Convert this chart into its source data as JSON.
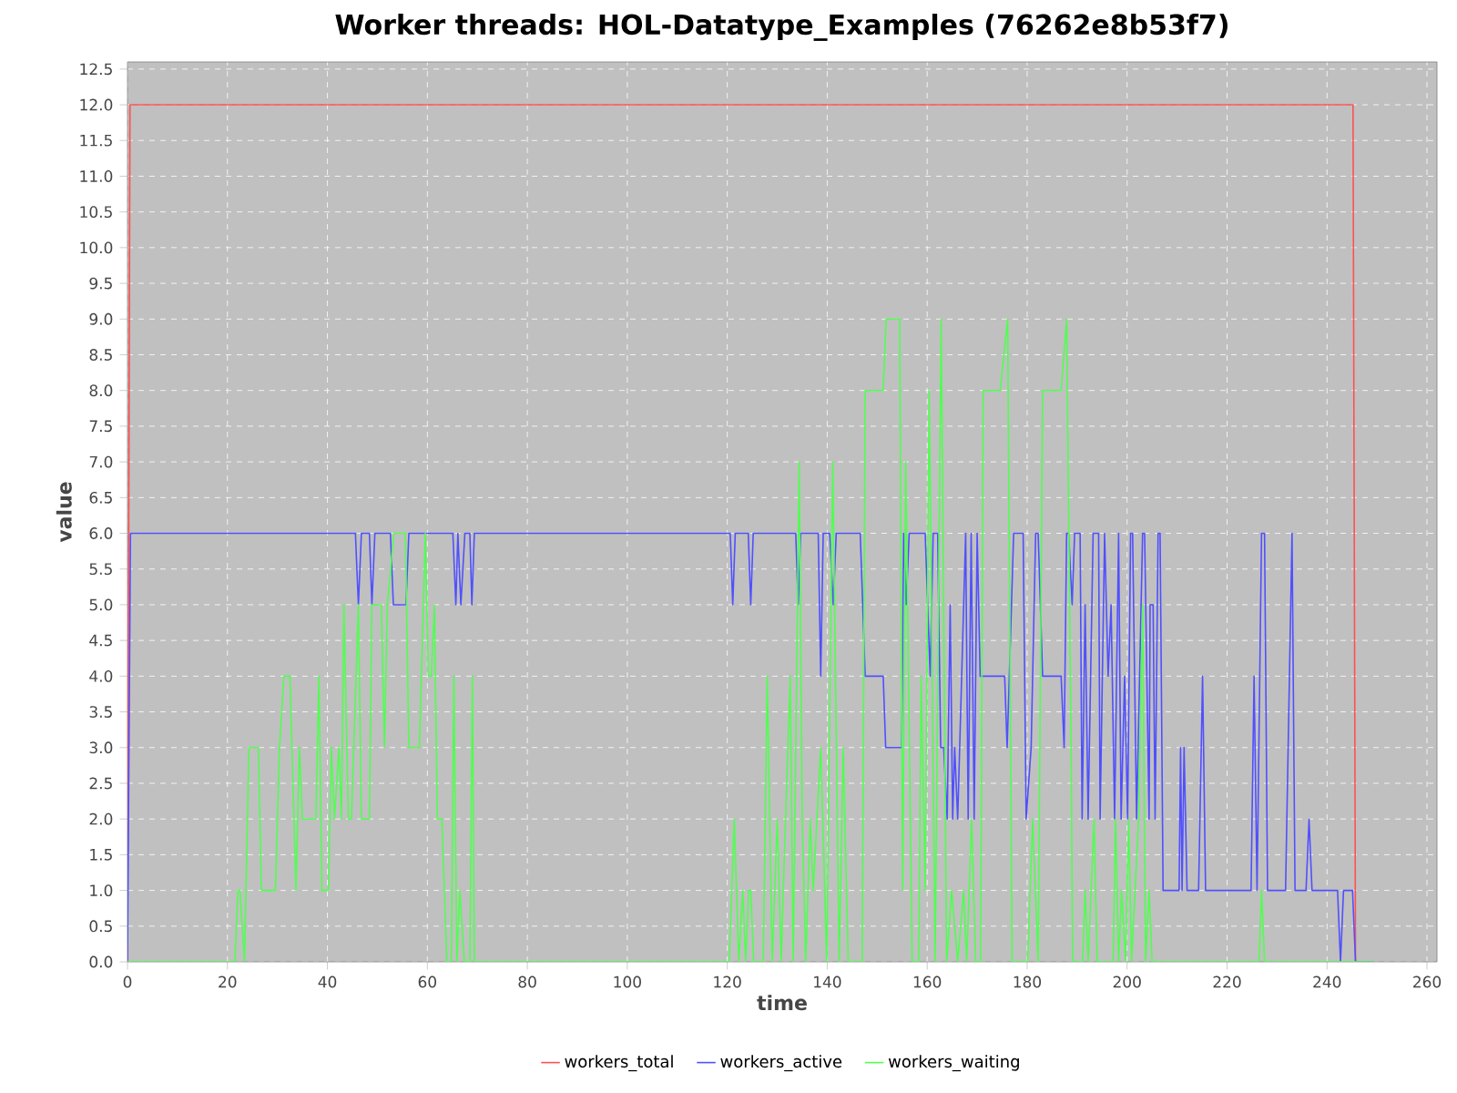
{
  "chart_data": {
    "type": "line",
    "title": "Worker threads: HOL-Datatype_Examples (76262e8b53f7)",
    "xlabel": "time",
    "ylabel": "value",
    "xlim": [
      0,
      262
    ],
    "xticks": [
      0,
      20,
      40,
      60,
      80,
      100,
      120,
      140,
      160,
      180,
      200,
      220,
      240,
      260
    ],
    "ylim": [
      0,
      12.6
    ],
    "yticks": [
      {
        "value": 0,
        "label": "0.0"
      },
      {
        "value": 0.5,
        "label": "0.5"
      },
      {
        "value": 1,
        "label": "1.0"
      },
      {
        "value": 1.5,
        "label": "1.5"
      },
      {
        "value": 2,
        "label": "2.0"
      },
      {
        "value": 2.5,
        "label": "2.5"
      },
      {
        "value": 3,
        "label": "3.0"
      },
      {
        "value": 3.5,
        "label": "3.5"
      },
      {
        "value": 4,
        "label": "4.0"
      },
      {
        "value": 4.5,
        "label": "4.5"
      },
      {
        "value": 5,
        "label": "5.0"
      },
      {
        "value": 5.5,
        "label": "5.5"
      },
      {
        "value": 6,
        "label": "6.0"
      },
      {
        "value": 6.5,
        "label": "6.5"
      },
      {
        "value": 7,
        "label": "7.0"
      },
      {
        "value": 7.5,
        "label": "7.5"
      },
      {
        "value": 8,
        "label": "8.0"
      },
      {
        "value": 8.5,
        "label": "8.5"
      },
      {
        "value": 9,
        "label": "9.0"
      },
      {
        "value": 9.5,
        "label": "9.5"
      },
      {
        "value": 10,
        "label": "10.0"
      },
      {
        "value": 10.5,
        "label": "10.5"
      },
      {
        "value": 11,
        "label": "11.0"
      },
      {
        "value": 11.5,
        "label": "11.5"
      },
      {
        "value": 12,
        "label": "12.0"
      },
      {
        "value": 12.5,
        "label": "12.5"
      }
    ],
    "grid": true,
    "legend": "bottom",
    "series": [
      {
        "name": "workers_total",
        "color": "#ff5050",
        "x": [
          0,
          0.5,
          245.2,
          245.7,
          249.4
        ],
        "values": [
          0,
          12,
          12,
          0,
          0
        ]
      },
      {
        "name": "workers_active",
        "color": "#5050ff",
        "x": [
          0,
          0.6,
          45.6,
          46.2,
          46.8,
          48.4,
          48.9,
          49.5,
          52.6,
          53.2,
          55.7,
          56.3,
          65.1,
          65.7,
          66.1,
          66.7,
          67.5,
          68.5,
          68.9,
          69.4,
          120.6,
          121.1,
          121.6,
          124.2,
          124.7,
          125.2,
          133.7,
          134.2,
          134.7,
          138.2,
          138.7,
          139.2,
          140.5,
          141.2,
          141.8,
          146.6,
          147.6,
          151.2,
          151.7,
          154.9,
          155.3,
          155.8,
          156.4,
          159.6,
          160.6,
          161.2,
          162.1,
          162.7,
          163.3,
          164,
          164.6,
          165.1,
          165.5,
          166.1,
          167.7,
          168.2,
          168.8,
          169.4,
          170,
          170.6,
          175.5,
          176,
          177.3,
          179.2,
          179.8,
          180.8,
          181.7,
          182.2,
          183.1,
          186.8,
          187.4,
          187.9,
          188.3,
          189,
          189.5,
          190.6,
          191,
          191.6,
          192.2,
          193.2,
          194.3,
          194.6,
          195.5,
          196.2,
          196.8,
          197.5,
          198.3,
          198.8,
          199.5,
          200.1,
          200.7,
          201.1,
          201.9,
          203.1,
          203.5,
          204.4,
          204.6,
          205.2,
          205.6,
          206.2,
          206.6,
          207.2,
          210.4,
          210.7,
          211,
          211.4,
          212,
          214.3,
          215.1,
          215.7,
          224.8,
          225.4,
          226,
          226.9,
          227.5,
          228.1,
          231.7,
          233,
          233.6,
          235.8,
          236.4,
          237,
          242.1,
          242.7,
          243.3,
          245.1,
          245.7,
          249.4
        ],
        "values": [
          0,
          6,
          6,
          5,
          6,
          6,
          5,
          6,
          6,
          5,
          5,
          6,
          6,
          5,
          6,
          5,
          6,
          6,
          5,
          6,
          6,
          5,
          6,
          6,
          5,
          6,
          6,
          5,
          6,
          6,
          4,
          6,
          6,
          5,
          6,
          6,
          4,
          4,
          3,
          3,
          6,
          5,
          6,
          6,
          4,
          6,
          6,
          3,
          3,
          2,
          5,
          2,
          3,
          2,
          6,
          2,
          6,
          2,
          6,
          4,
          4,
          3,
          6,
          6,
          2,
          3,
          6,
          6,
          4,
          4,
          3,
          6,
          6,
          5,
          6,
          6,
          2,
          5,
          2,
          6,
          6,
          2,
          6,
          4,
          5,
          2,
          6,
          2,
          4,
          2,
          6,
          6,
          2,
          6,
          6,
          2,
          5,
          5,
          2,
          6,
          6,
          1,
          1,
          3,
          1,
          3,
          1,
          1,
          4,
          1,
          1,
          4,
          1,
          6,
          6,
          1,
          1,
          6,
          1,
          1,
          2,
          1,
          1,
          0,
          1,
          1,
          0,
          0
        ]
      },
      {
        "name": "workers_waiting",
        "color": "#50ff50",
        "x": [
          0,
          21.5,
          22.1,
          22.5,
          23.4,
          24.3,
          26.2,
          26.8,
          29.6,
          30.4,
          31.3,
          32.5,
          33.7,
          34.4,
          35,
          37.7,
          38.3,
          38.9,
          40.2,
          40.8,
          41.4,
          42.3,
          42.8,
          43.3,
          44.2,
          44.8,
          46.2,
          46.8,
          48.4,
          48.9,
          50.8,
          51.4,
          52,
          53.3,
          55.6,
          56.3,
          58.4,
          59.6,
          60.2,
          60.8,
          61.4,
          62,
          62.9,
          63.9,
          64.8,
          65.3,
          65.9,
          66.5,
          67.4,
          68.5,
          69,
          69.4,
          120.4,
          121.4,
          122.3,
          123.1,
          123.7,
          124.3,
          124.7,
          125.3,
          127.2,
          128,
          129,
          130,
          130.8,
          131.2,
          132.6,
          133.2,
          134.4,
          135,
          135.7,
          136.6,
          137.2,
          138.7,
          139.9,
          141.1,
          142.4,
          143.2,
          144.2,
          146,
          147,
          147.6,
          151.2,
          151.8,
          154.5,
          155.1,
          155.7,
          157,
          158.3,
          158.8,
          159.6,
          160.4,
          161.6,
          162.8,
          163.9,
          164.9,
          166.1,
          167.3,
          167.9,
          168.9,
          169.7,
          170.7,
          171.2,
          174.6,
          176.1,
          177,
          180.1,
          181.1,
          182.2,
          183.1,
          186.8,
          187.9,
          188.8,
          189.1,
          191.1,
          191.6,
          192.2,
          193.4,
          194,
          197.2,
          197.7,
          198.3,
          198.9,
          199.7,
          200.3,
          200.9,
          202.3,
          203.1,
          203.7,
          204.4,
          205,
          226.4,
          226.9,
          227.5,
          249.4
        ],
        "values": [
          0,
          0,
          1,
          1,
          0,
          3,
          3,
          1,
          1,
          3,
          4,
          4,
          1,
          3,
          2,
          2,
          4,
          1,
          1,
          3,
          2,
          3,
          2,
          5,
          2,
          2,
          5,
          2,
          2,
          5,
          5,
          3,
          5,
          6,
          6,
          3,
          3,
          6,
          4,
          4,
          5,
          2,
          2,
          0,
          0,
          4,
          0,
          1,
          0,
          0,
          4,
          0,
          0,
          2,
          0,
          1,
          0,
          1,
          1,
          0,
          0,
          4,
          0,
          2,
          0,
          1,
          4,
          0,
          7,
          2,
          0,
          2,
          1,
          3,
          0,
          7,
          0,
          3,
          0,
          0,
          0,
          8,
          8,
          9,
          9,
          1,
          7,
          0,
          0,
          4,
          1,
          8,
          0,
          9,
          0,
          1,
          0,
          1,
          0,
          2,
          0,
          0,
          8,
          8,
          9,
          0,
          0,
          2,
          0,
          8,
          8,
          9,
          3,
          0,
          0,
          1,
          0,
          2,
          0,
          0,
          2,
          0,
          1,
          0,
          2,
          0,
          2,
          5,
          0,
          1,
          0,
          0,
          1,
          0,
          0
        ]
      }
    ]
  }
}
